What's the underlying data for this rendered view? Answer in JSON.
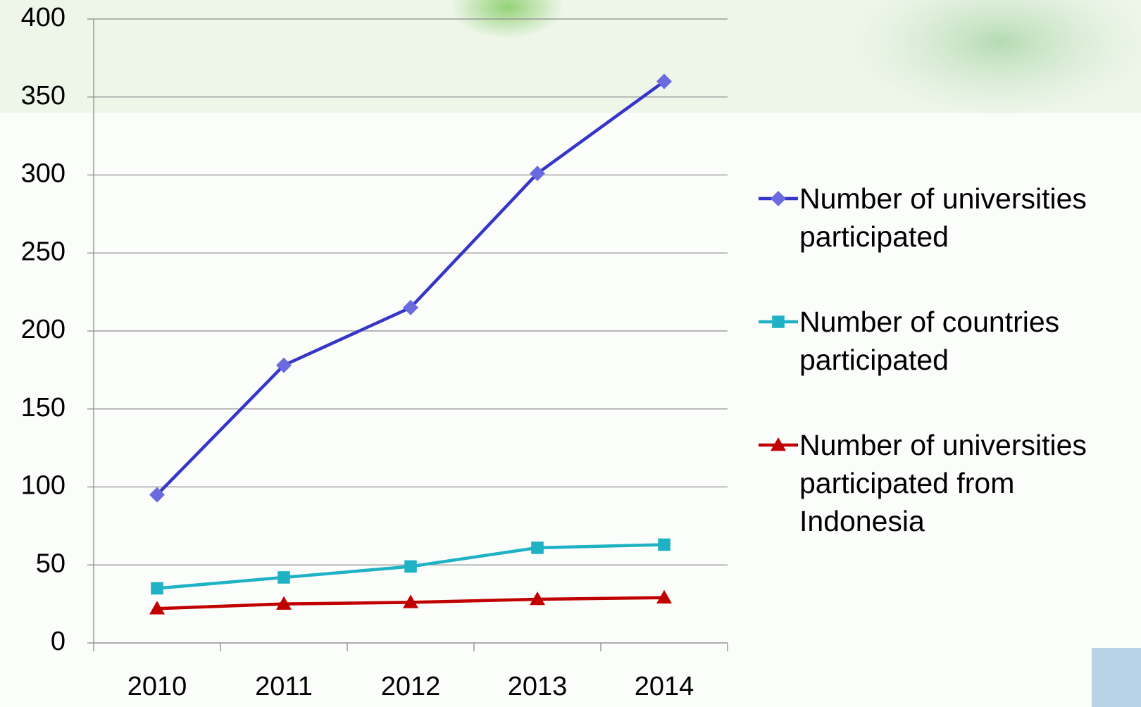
{
  "chart_data": {
    "type": "line",
    "categories": [
      "2010",
      "2011",
      "2012",
      "2013",
      "2014"
    ],
    "series": [
      {
        "name": "Number of universities participated",
        "color": "#3535c8",
        "marker": "diamond",
        "marker_color": "#6b6be0",
        "values": [
          95,
          178,
          215,
          301,
          360
        ]
      },
      {
        "name": "Number of countries participated",
        "color": "#1fb2c4",
        "marker": "square",
        "marker_color": "#1fb2c4",
        "values": [
          35,
          42,
          49,
          61,
          63
        ]
      },
      {
        "name": "Number of universities participated from Indonesia",
        "color": "#c00000",
        "marker": "triangle",
        "marker_color": "#c00000",
        "values": [
          22,
          25,
          26,
          28,
          29
        ]
      }
    ],
    "ylim": [
      0,
      400
    ],
    "yticks": [
      0,
      50,
      100,
      150,
      200,
      250,
      300,
      350,
      400
    ],
    "grid": true,
    "legend": "right"
  }
}
